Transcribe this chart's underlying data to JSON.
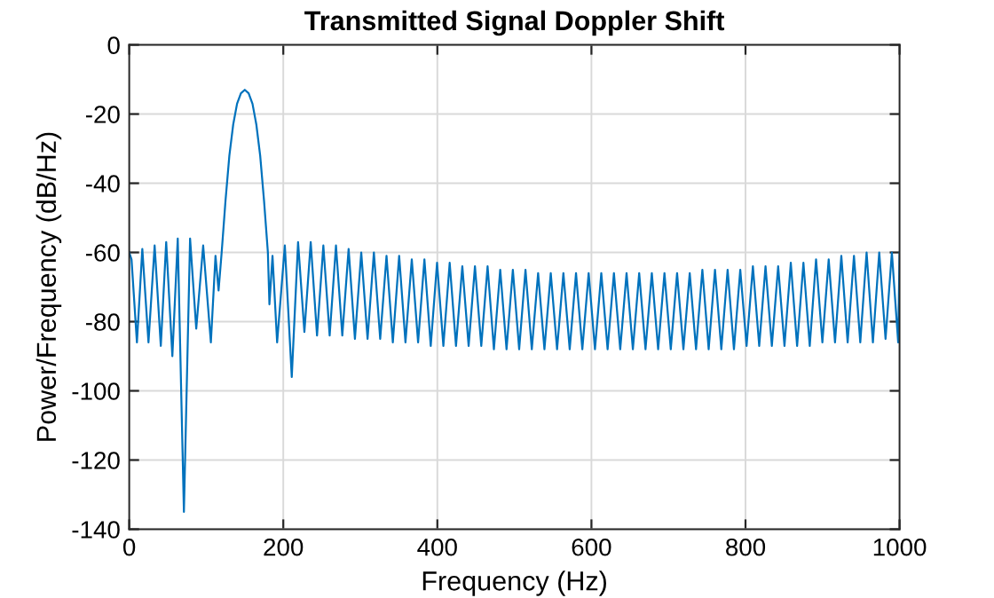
{
  "chart_data": {
    "type": "line",
    "title": "Transmitted Signal Doppler Shift",
    "xlabel": "Frequency (Hz)",
    "ylabel": "Power/Frequency (dB/Hz)",
    "xlim": [
      0,
      1000
    ],
    "ylim": [
      -140,
      0
    ],
    "xticks": [
      0,
      200,
      400,
      600,
      800,
      1000
    ],
    "yticks": [
      -140,
      -120,
      -100,
      -80,
      -60,
      -40,
      -20,
      0
    ],
    "grid": true,
    "line_style": "solid",
    "series": [
      {
        "color": "#0072bd",
        "x": [
          0,
          3,
          10,
          17,
          25,
          33,
          41,
          48,
          56,
          63,
          71,
          79,
          87,
          96,
          106,
          112,
          116,
          120,
          125,
          130,
          135,
          140,
          145,
          150,
          155,
          160,
          165,
          170,
          175,
          180,
          182,
          186,
          192,
          202,
          211.0,
          219.2,
          227.4,
          235.6,
          243.8,
          252.0,
          260.2,
          268.4,
          276.6,
          284.8,
          293.0,
          301.2,
          309.4,
          317.6,
          325.8,
          334.0,
          342.2,
          350.4,
          358.6,
          366.8,
          375.0,
          383.2,
          391.4,
          399.6,
          407.8,
          416.0,
          424.2,
          432.4,
          440.6,
          448.8,
          457.0,
          465.2,
          473.4,
          481.6,
          489.8,
          498.0,
          506.2,
          514.4,
          522.6,
          530.8,
          539.0,
          547.2,
          555.4,
          563.6,
          571.8,
          580.0,
          588.2,
          596.4,
          604.6,
          612.8,
          621.0,
          629.2,
          637.4,
          645.6,
          653.8,
          662.0,
          670.2,
          678.4,
          686.6,
          694.8,
          703.0,
          711.2,
          719.4,
          727.6,
          735.8,
          744.0,
          752.2,
          760.4,
          768.6,
          776.8,
          785.0,
          793.2,
          801.4,
          809.6,
          817.8,
          826.0,
          834.2,
          842.4,
          850.6,
          858.8,
          867.0,
          875.2,
          883.4,
          891.6,
          899.8,
          908.0,
          916.2,
          924.4,
          932.6,
          940.8,
          949.0,
          957.2,
          965.4,
          973.6,
          981.8,
          990.0,
          998.2,
          1000
        ],
        "values": [
          -60,
          -62,
          -86,
          -59,
          -86,
          -58,
          -87,
          -57,
          -90,
          -56,
          -135,
          -56,
          -82,
          -58,
          -86,
          -61,
          -71,
          -60,
          -45,
          -32,
          -23,
          -17,
          -14,
          -13,
          -14,
          -17,
          -23,
          -32,
          -45,
          -60,
          -75,
          -61,
          -86,
          -58,
          -96,
          -57,
          -83,
          -57,
          -84,
          -58,
          -84,
          -58,
          -84,
          -59,
          -85,
          -60,
          -85,
          -60,
          -85,
          -61,
          -86,
          -61,
          -86,
          -62,
          -86,
          -62,
          -87,
          -63,
          -87,
          -63,
          -87,
          -64,
          -87,
          -64,
          -87,
          -64,
          -88,
          -65,
          -88,
          -65,
          -88,
          -65,
          -88,
          -66,
          -88,
          -66,
          -88,
          -66,
          -88,
          -66,
          -88,
          -66,
          -88,
          -66,
          -88,
          -66,
          -88,
          -66,
          -88,
          -66,
          -88,
          -66,
          -88,
          -66,
          -88,
          -66,
          -88,
          -66,
          -88,
          -65,
          -88,
          -65,
          -88,
          -65,
          -88,
          -65,
          -87,
          -64,
          -87,
          -64,
          -87,
          -64,
          -87,
          -63,
          -87,
          -63,
          -87,
          -62,
          -86,
          -62,
          -86,
          -61,
          -86,
          -61,
          -86,
          -60,
          -86,
          -60,
          -85,
          -60,
          -86,
          -60
        ]
      }
    ]
  }
}
